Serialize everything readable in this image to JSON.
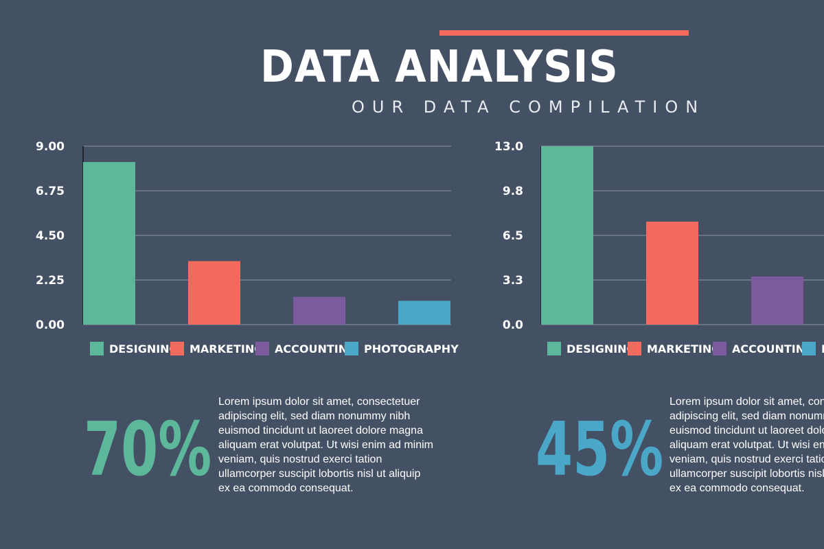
{
  "header": {
    "title": "DATA ANALYSIS",
    "subtitle": "OUR DATA COMPILATION",
    "accent_color": "#f36b5f"
  },
  "chart_data": [
    {
      "type": "bar",
      "categories": [
        "DESIGNING",
        "MARKETING",
        "ACCOUNTING",
        "PHOTOGRAPHY"
      ],
      "values": [
        8.2,
        3.2,
        1.4,
        1.2
      ],
      "colors": [
        "#5db89b",
        "#f36b5f",
        "#7b5b9e",
        "#4aa7c7"
      ],
      "yticks": [
        "0.00",
        "2.25",
        "4.50",
        "6.75",
        "9.00"
      ],
      "ylim": [
        0,
        9
      ],
      "grid": true,
      "legend": "bottom"
    },
    {
      "type": "bar",
      "categories": [
        "DESIGNING",
        "MARKETING",
        "ACCOUNTING",
        "PHOTOGRAPHY"
      ],
      "values": [
        13.0,
        7.5,
        3.5,
        0
      ],
      "colors": [
        "#5db89b",
        "#f36b5f",
        "#7b5b9e",
        "#4aa7c7"
      ],
      "yticks": [
        "0.0",
        "3.3",
        "6.5",
        "9.8",
        "13.0"
      ],
      "ylim": [
        0,
        13
      ],
      "grid": true,
      "legend": "bottom"
    }
  ],
  "stats": [
    {
      "value": "70%",
      "color": "#5db89b",
      "text": [
        "Lorem ipsum dolor sit amet, consectetuer",
        "adipiscing elit, sed diam nonummy nibh",
        "euismod tincidunt ut laoreet dolore magna",
        "aliquam erat volutpat. Ut wisi enim ad minim",
        "veniam, quis nostrud exerci tation",
        "ullamcorper suscipit lobortis nisl ut aliquip",
        "ex ea commodo consequat."
      ]
    },
    {
      "value": "45%",
      "color": "#4aa7c7",
      "text": [
        "Lorem ipsum dolor sit amet, consectetuer",
        "adipiscing elit, sed diam nonummy nibh",
        "euismod tincidunt ut laoreet dolore magna",
        "aliquam erat volutpat. Ut wisi enim ad minim",
        "veniam, quis nostrud exerci tation",
        "ullamcorper suscipit lobortis nisl ut aliquip",
        "ex ea commodo consequat."
      ]
    }
  ]
}
